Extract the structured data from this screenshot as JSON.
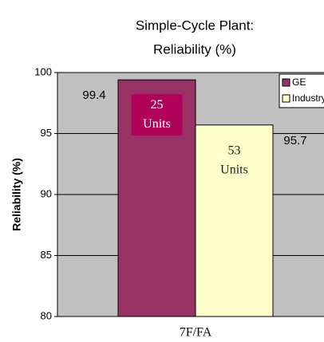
{
  "chart_data": {
    "type": "bar",
    "title": [
      "Simple-Cycle Plant:",
      "Reliability (%)"
    ],
    "y_label": "Reliability (%)",
    "categories": [
      "7F/FA"
    ],
    "series": [
      {
        "name": "GE",
        "color": "#993366",
        "values": [
          99.4
        ]
      },
      {
        "name": "Industry",
        "color": "#ffffcc",
        "values": [
          95.7
        ]
      }
    ],
    "annotations": [
      [
        "25",
        "Units"
      ],
      [
        "53",
        "Units"
      ]
    ],
    "ylim": [
      80,
      100
    ],
    "yticks": [
      80,
      85,
      90,
      95,
      100
    ],
    "grid": true,
    "legend": "top-right"
  }
}
